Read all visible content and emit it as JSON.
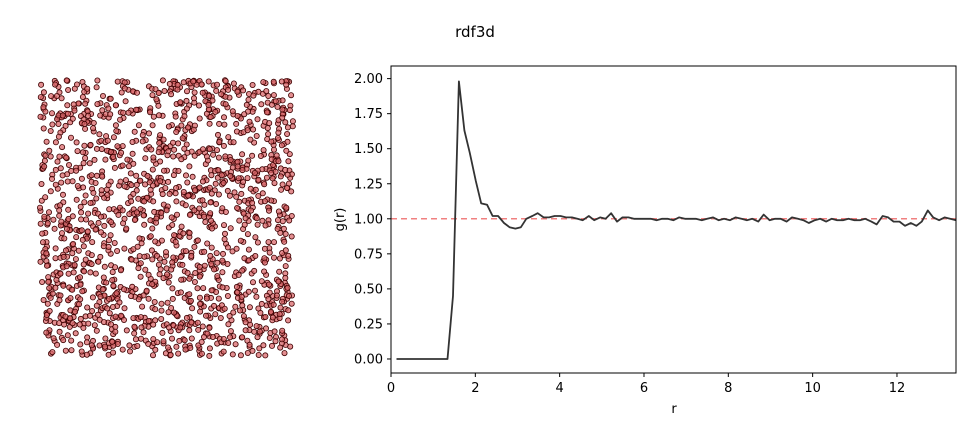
{
  "title": "rdf3d",
  "colors": {
    "particle_fill": "#d9686b",
    "particle_edge": "#3d0000",
    "rdf_line": "#333333",
    "reference_line": "#f08080"
  },
  "chart_data": [
    {
      "type": "scatter",
      "description_source": "particle snapshot panel, no axes",
      "n_points": 1600,
      "title": "",
      "xlabel": "",
      "ylabel": ""
    },
    {
      "type": "line",
      "title": "",
      "xlabel": "r",
      "ylabel": "g(r)",
      "xlim": [
        0,
        13.4
      ],
      "ylim": [
        -0.1,
        2.09
      ],
      "xticks": [
        "0",
        "2",
        "4",
        "6",
        "8",
        "10",
        "12"
      ],
      "xtick_values": [
        0,
        2,
        4,
        6,
        8,
        10,
        12
      ],
      "yticks": [
        "0.00",
        "0.25",
        "0.50",
        "0.75",
        "1.00",
        "1.25",
        "1.50",
        "1.75",
        "2.00"
      ],
      "ytick_values": [
        0,
        0.25,
        0.5,
        0.75,
        1.0,
        1.25,
        1.5,
        1.75,
        2.0
      ],
      "reference_y": 1.0,
      "x": [
        0.13,
        0.27,
        0.4,
        0.53,
        0.67,
        0.8,
        0.94,
        1.07,
        1.2,
        1.34,
        1.47,
        1.61,
        1.74,
        1.87,
        2.01,
        2.14,
        2.28,
        2.41,
        2.54,
        2.68,
        2.81,
        2.95,
        3.08,
        3.21,
        3.35,
        3.48,
        3.62,
        3.75,
        3.88,
        4.02,
        4.15,
        4.29,
        4.42,
        4.55,
        4.69,
        4.82,
        4.96,
        5.09,
        5.22,
        5.36,
        5.49,
        5.63,
        5.76,
        5.89,
        6.03,
        6.16,
        6.3,
        6.43,
        6.56,
        6.7,
        6.83,
        6.97,
        7.1,
        7.23,
        7.37,
        7.5,
        7.64,
        7.77,
        7.9,
        8.04,
        8.17,
        8.31,
        8.44,
        8.57,
        8.71,
        8.84,
        8.98,
        9.11,
        9.24,
        9.38,
        9.51,
        9.65,
        9.78,
        9.91,
        10.05,
        10.18,
        10.32,
        10.45,
        10.58,
        10.72,
        10.85,
        10.99,
        11.12,
        11.25,
        11.39,
        11.52,
        11.66,
        11.79,
        11.92,
        12.06,
        12.19,
        12.33,
        12.46,
        12.59,
        12.73,
        12.86,
        13.0,
        13.13,
        13.26,
        13.4
      ],
      "y": [
        0,
        0,
        0,
        0,
        0,
        0,
        0,
        0,
        0,
        0,
        0.45,
        1.98,
        1.63,
        1.47,
        1.27,
        1.11,
        1.1,
        1.02,
        1.02,
        0.97,
        0.94,
        0.93,
        0.94,
        1.0,
        1.02,
        1.04,
        1.01,
        1.01,
        1.02,
        1.02,
        1.01,
        1.01,
        1.0,
        0.99,
        1.02,
        0.99,
        1.01,
        1.0,
        1.04,
        0.98,
        1.01,
        1.01,
        1.0,
        1.0,
        1.0,
        1.0,
        0.99,
        1.0,
        1.0,
        0.99,
        1.01,
        1.0,
        1.0,
        1.0,
        0.99,
        1.0,
        1.01,
        0.99,
        1.0,
        0.99,
        1.01,
        1.0,
        0.99,
        1.0,
        0.98,
        1.03,
        0.99,
        1.0,
        1.0,
        0.98,
        1.01,
        1.0,
        0.99,
        0.97,
        0.99,
        1.0,
        0.98,
        1.0,
        0.99,
        0.99,
        1.0,
        0.99,
        0.99,
        1.0,
        0.98,
        0.96,
        1.02,
        1.01,
        0.98,
        0.98,
        0.95,
        0.97,
        0.95,
        0.98,
        1.06,
        1.01,
        0.99,
        1.01,
        1.0,
        0.99
      ],
      "legend": "none",
      "grid": false
    }
  ]
}
